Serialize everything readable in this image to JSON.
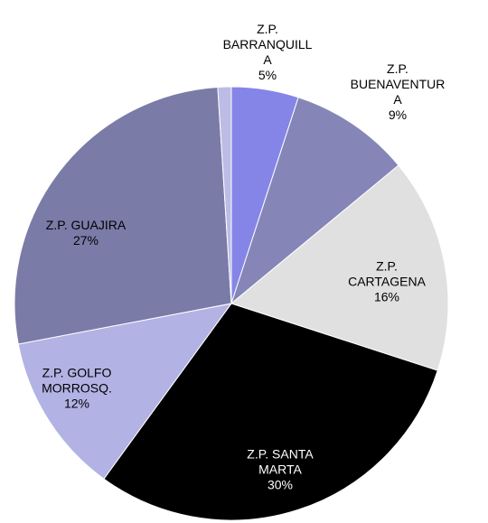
{
  "chart_data": {
    "type": "pie",
    "categories": [
      "Z.P.\nBARRANQUILL\nA",
      "Z.P.\nBUENAVENTUR\nA",
      "Z.P.\nCARTAGENA",
      "Z.P. SANTA\nMARTA",
      "Z.P. GOLFO\nMORROSQ.",
      "Z.P. GUAJIRA",
      null
    ],
    "values": [
      5,
      9,
      16,
      30,
      12,
      27,
      1
    ],
    "value_labels": [
      "5%",
      "9%",
      "16%",
      "30%",
      "12%",
      "27%",
      null
    ],
    "colors": [
      "#8585e8",
      "#8585b8",
      "#e0e0e0",
      "#000000",
      "#b2b2e4",
      "#7b7ba8",
      "#bcbce6"
    ]
  }
}
